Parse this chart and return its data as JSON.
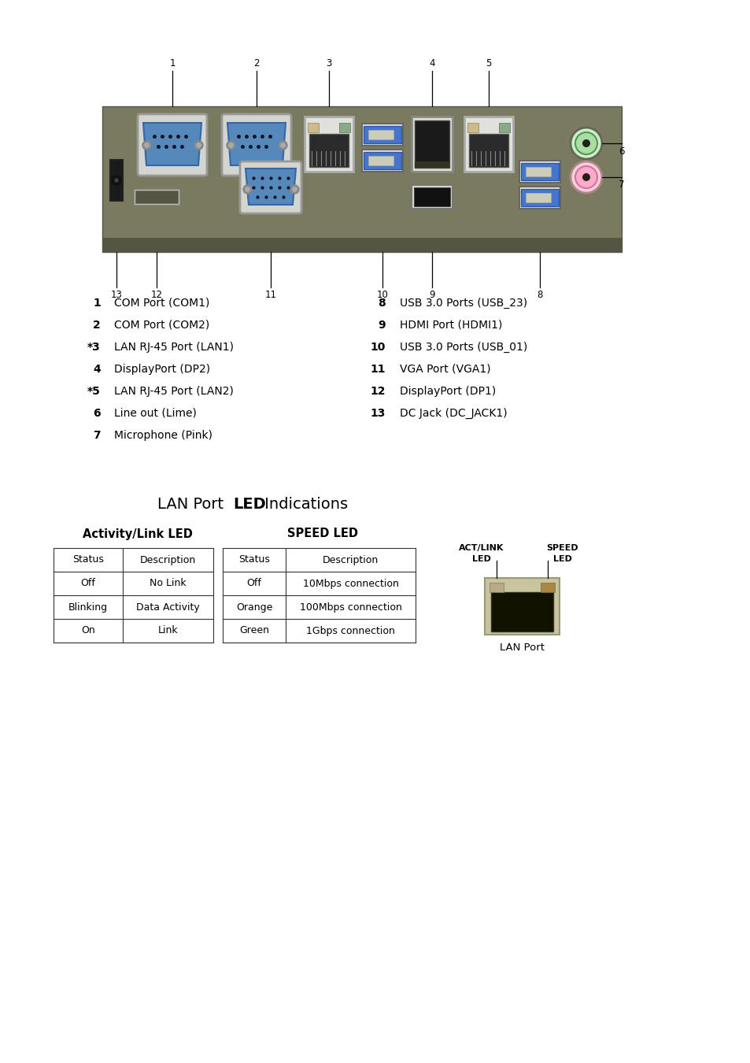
{
  "bg_color": "#ffffff",
  "port_labels_left": [
    [
      "1",
      "COM Port (COM1)"
    ],
    [
      "2",
      "COM Port (COM2)"
    ],
    [
      "*3",
      "LAN RJ-45 Port (LAN1)"
    ],
    [
      "4",
      "DisplayPort (DP2)"
    ],
    [
      "*5",
      "LAN RJ-45 Port (LAN2)"
    ],
    [
      "6",
      "Line out (Lime)"
    ],
    [
      "7",
      "Microphone (Pink)"
    ]
  ],
  "port_labels_right": [
    [
      "8",
      "USB 3.0 Ports (USB_23)"
    ],
    [
      "9",
      "HDMI Port (HDMI1)"
    ],
    [
      "10",
      "USB 3.0 Ports (USB_01)"
    ],
    [
      "11",
      "VGA Port (VGA1)"
    ],
    [
      "12",
      "DisplayPort (DP1)"
    ],
    [
      "13",
      "DC Jack (DC_JACK1)"
    ]
  ],
  "lan_title_normal": "LAN Port ",
  "lan_title_bold": "LED",
  "lan_title_normal2": " Indications",
  "act_link_title": "Activity/Link LED",
  "speed_led_title": "SPEED LED",
  "act_link_headers": [
    "Status",
    "Description"
  ],
  "act_link_rows": [
    [
      "Off",
      "No Link"
    ],
    [
      "Blinking",
      "Data Activity"
    ],
    [
      "On",
      "Link"
    ]
  ],
  "speed_headers": [
    "Status",
    "Description"
  ],
  "speed_rows": [
    [
      "Off",
      "10Mbps connection"
    ],
    [
      "Orange",
      "100Mbps connection"
    ],
    [
      "Green",
      "1Gbps connection"
    ]
  ],
  "lan_image_label": "LAN Port",
  "act_link_label1": "ACT/LINK",
  "act_link_label2": "SPEED",
  "act_link_label3": "LED",
  "act_link_label4": "LED",
  "panel_color_outer": "#7a7a60",
  "panel_color_inner": "#888870",
  "panel_border_color": "#555544"
}
